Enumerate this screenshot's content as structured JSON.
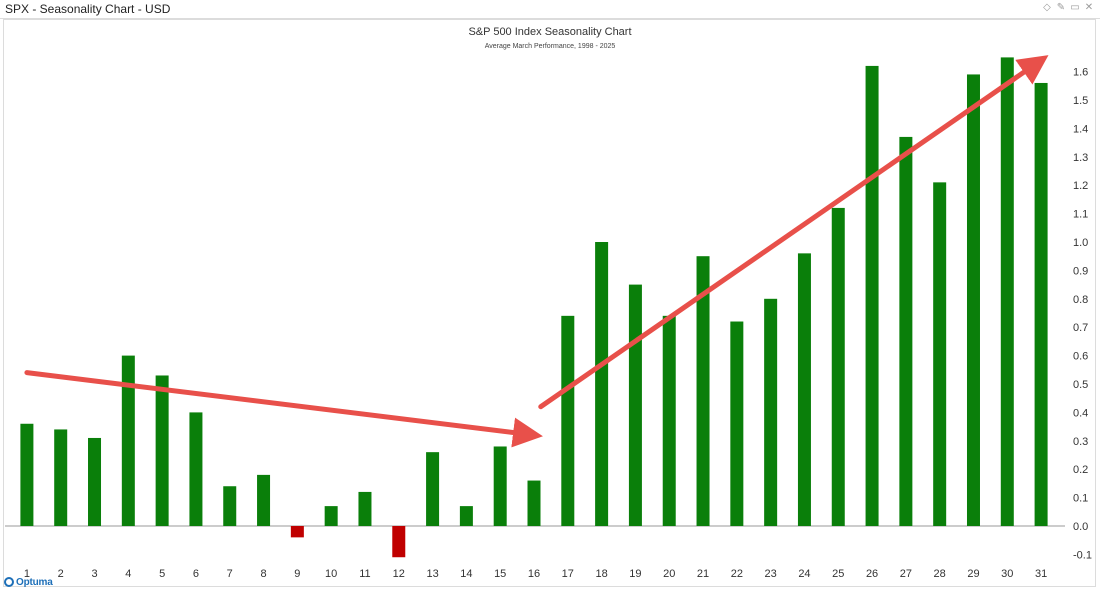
{
  "window": {
    "title": "SPX - Seasonality Chart - USD",
    "controls": [
      {
        "name": "diamond-icon",
        "glyph": "◇"
      },
      {
        "name": "pin-icon",
        "glyph": "✎"
      },
      {
        "name": "restore-icon",
        "glyph": "▭"
      },
      {
        "name": "close-icon",
        "glyph": "✕"
      }
    ]
  },
  "brand": {
    "text": "Optuma"
  },
  "colors": {
    "positive": "#0a7f0a",
    "negative": "#c00000",
    "arrow": "#e8504a",
    "axis_text": "#333333",
    "zero_line": "#9a9a9a"
  },
  "chart_data": {
    "type": "bar",
    "title": "S&P 500 Index Seasonality Chart",
    "subtitle": "Average March Performance, 1998 - 2025",
    "xlabel": "",
    "ylabel": "",
    "categories": [
      "1",
      "2",
      "3",
      "4",
      "5",
      "6",
      "7",
      "8",
      "9",
      "10",
      "11",
      "12",
      "13",
      "14",
      "15",
      "16",
      "17",
      "18",
      "19",
      "20",
      "21",
      "22",
      "23",
      "24",
      "25",
      "26",
      "27",
      "28",
      "29",
      "30",
      "31"
    ],
    "values": [
      0.36,
      0.34,
      0.31,
      0.6,
      0.53,
      0.4,
      0.14,
      0.18,
      -0.04,
      0.07,
      0.12,
      -0.11,
      0.26,
      0.07,
      0.28,
      0.16,
      0.74,
      1.0,
      0.85,
      0.74,
      0.95,
      0.72,
      0.8,
      0.96,
      1.12,
      1.62,
      1.37,
      1.21,
      1.59,
      1.65,
      1.56
    ],
    "ylim": [
      -0.13,
      1.68
    ],
    "yticks": [
      "-0.1",
      "0.0",
      "0.1",
      "0.2",
      "0.3",
      "0.4",
      "0.5",
      "0.6",
      "0.7",
      "0.8",
      "0.9",
      "1.0",
      "1.1",
      "1.2",
      "1.3",
      "1.4",
      "1.5",
      "1.6"
    ],
    "ytick_values": [
      -0.1,
      0.0,
      0.1,
      0.2,
      0.3,
      0.4,
      0.5,
      0.6,
      0.7,
      0.8,
      0.9,
      1.0,
      1.1,
      1.2,
      1.3,
      1.4,
      1.5,
      1.6
    ],
    "y_axis_side": "right",
    "grid": false,
    "annotations": [
      {
        "type": "trend-arrow",
        "from": {
          "day": 1,
          "value": 0.54
        },
        "to": {
          "day": 16,
          "value": 0.32
        }
      },
      {
        "type": "trend-arrow",
        "from": {
          "day": 16.2,
          "value": 0.42
        },
        "to": {
          "day": 31,
          "value": 1.64
        }
      }
    ]
  }
}
